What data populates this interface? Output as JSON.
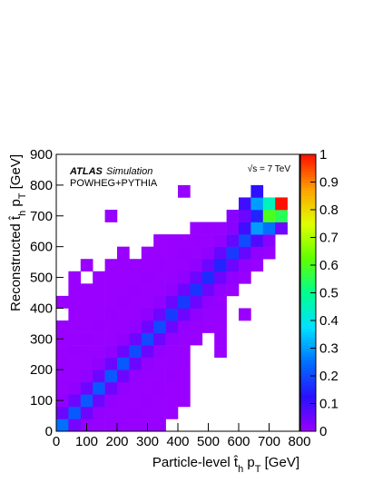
{
  "chart_data": {
    "type": "heatmap",
    "annotations": [
      "ATLAS",
      "Simulation",
      "POWHEG+PYTHIA",
      "√s = 7 TeV"
    ],
    "xlabel_parts": [
      "Particle-level t̂",
      "h",
      " p",
      "T",
      " [GeV]"
    ],
    "ylabel_parts": [
      "Reconstructed t̂",
      "h",
      " p",
      "T",
      " [GeV]"
    ],
    "xlim": [
      0,
      800
    ],
    "ylim": [
      0,
      900
    ],
    "zlim": [
      0,
      1
    ],
    "xticks": [
      0,
      100,
      200,
      300,
      400,
      500,
      600,
      700,
      800
    ],
    "yticks": [
      0,
      100,
      200,
      300,
      400,
      500,
      600,
      700,
      800,
      900
    ],
    "zticks": [
      0,
      0.1,
      0.2,
      0.3,
      0.4,
      0.5,
      0.6,
      0.7,
      0.8,
      0.9,
      1
    ],
    "colorscale": [
      "#9a00ff",
      "#2a10ff",
      "#0070ff",
      "#00e0ff",
      "#00ff90",
      "#60ff00",
      "#e0ff00",
      "#ffa000",
      "#ff1000"
    ],
    "xbins": [
      0,
      40,
      80,
      120,
      160,
      200,
      240,
      280,
      320,
      360,
      400,
      440,
      480,
      520,
      560,
      600,
      640,
      680,
      720,
      760,
      800
    ],
    "ybins": [
      0,
      40,
      80,
      120,
      160,
      200,
      240,
      280,
      320,
      360,
      400,
      440,
      480,
      520,
      560,
      600,
      640,
      680,
      720,
      760,
      800
    ],
    "z": [
      [
        0.25,
        0.04,
        0.008,
        0.005,
        0.004,
        0.003,
        0.002,
        0.002,
        0.001,
        null,
        null,
        null,
        null,
        null,
        null,
        null,
        null,
        null,
        null,
        null
      ],
      [
        0.05,
        0.22,
        0.05,
        0.008,
        0.005,
        0.004,
        0.003,
        0.002,
        0.002,
        0.001,
        null,
        null,
        null,
        null,
        null,
        null,
        null,
        null,
        null,
        null
      ],
      [
        0.01,
        0.05,
        0.22,
        0.05,
        0.008,
        0.005,
        0.004,
        0.003,
        0.002,
        0.001,
        0.001,
        null,
        null,
        null,
        null,
        null,
        null,
        null,
        null,
        null
      ],
      [
        0.005,
        0.01,
        0.05,
        0.22,
        0.05,
        0.008,
        0.005,
        0.004,
        0.003,
        0.002,
        0.001,
        null,
        null,
        null,
        null,
        null,
        null,
        null,
        null,
        null
      ],
      [
        0.004,
        0.005,
        0.01,
        0.05,
        0.22,
        0.05,
        0.008,
        0.005,
        0.004,
        0.003,
        0.001,
        null,
        null,
        null,
        null,
        null,
        null,
        null,
        null,
        null
      ],
      [
        0.003,
        0.004,
        0.005,
        0.01,
        0.05,
        0.22,
        0.05,
        0.008,
        0.005,
        0.004,
        0.002,
        null,
        null,
        null,
        null,
        null,
        null,
        null,
        null,
        null
      ],
      [
        0.002,
        0.003,
        0.004,
        0.005,
        0.01,
        0.05,
        0.2,
        0.05,
        0.008,
        0.005,
        0.002,
        null,
        null,
        0.001,
        null,
        null,
        null,
        null,
        null,
        null
      ],
      [
        0.002,
        0.002,
        0.003,
        0.004,
        0.005,
        0.01,
        0.05,
        0.2,
        0.05,
        0.008,
        0.004,
        0.002,
        null,
        0.001,
        null,
        null,
        null,
        null,
        null,
        null
      ],
      [
        0.001,
        0.002,
        0.002,
        0.003,
        0.004,
        0.005,
        0.01,
        0.05,
        0.2,
        0.05,
        0.008,
        0.004,
        0.002,
        0.001,
        null,
        null,
        null,
        null,
        null,
        null
      ],
      [
        null,
        0.001,
        0.002,
        0.002,
        0.003,
        0.004,
        0.005,
        0.01,
        0.05,
        0.18,
        0.05,
        0.01,
        0.004,
        0.002,
        null,
        0.001,
        null,
        null,
        null,
        null
      ],
      [
        0.001,
        0.001,
        0.001,
        0.002,
        0.002,
        0.003,
        0.004,
        0.005,
        0.01,
        0.05,
        0.18,
        0.05,
        0.01,
        0.003,
        null,
        null,
        null,
        null,
        null,
        null
      ],
      [
        null,
        0.001,
        0.001,
        0.001,
        0.002,
        0.002,
        0.003,
        0.004,
        0.005,
        0.01,
        0.05,
        0.17,
        0.05,
        0.01,
        0.002,
        null,
        null,
        null,
        null,
        null
      ],
      [
        null,
        0.001,
        null,
        0.001,
        0.001,
        0.002,
        0.002,
        0.003,
        0.004,
        0.005,
        0.01,
        0.05,
        0.16,
        0.05,
        0.01,
        0.002,
        null,
        null,
        null,
        null
      ],
      [
        null,
        null,
        0.001,
        null,
        0.001,
        0.001,
        0.002,
        0.002,
        0.003,
        0.004,
        0.005,
        0.01,
        0.05,
        0.15,
        0.05,
        0.01,
        0.002,
        null,
        null,
        null
      ],
      [
        null,
        null,
        null,
        null,
        null,
        0.001,
        null,
        0.001,
        0.002,
        0.002,
        0.003,
        0.004,
        0.01,
        0.06,
        0.18,
        0.06,
        0.01,
        0.005,
        null,
        null
      ],
      [
        null,
        null,
        null,
        null,
        null,
        null,
        null,
        null,
        0.001,
        0.002,
        0.002,
        0.003,
        0.005,
        0.01,
        0.06,
        0.2,
        0.08,
        0.02,
        null,
        null
      ],
      [
        null,
        null,
        null,
        null,
        null,
        null,
        null,
        null,
        null,
        null,
        null,
        0.002,
        0.003,
        0.005,
        0.02,
        0.1,
        0.3,
        0.25,
        0.05,
        null
      ],
      [
        null,
        null,
        null,
        null,
        0.003,
        null,
        null,
        null,
        null,
        null,
        null,
        null,
        null,
        null,
        0.02,
        0.05,
        0.15,
        0.6,
        0.55,
        null
      ],
      [
        null,
        null,
        null,
        null,
        null,
        null,
        null,
        null,
        null,
        null,
        null,
        null,
        null,
        null,
        null,
        0.1,
        0.3,
        0.45,
        1,
        null
      ],
      [
        null,
        null,
        null,
        null,
        null,
        null,
        null,
        null,
        null,
        null,
        0.002,
        null,
        null,
        null,
        null,
        null,
        0.12,
        null,
        null,
        null
      ]
    ]
  }
}
